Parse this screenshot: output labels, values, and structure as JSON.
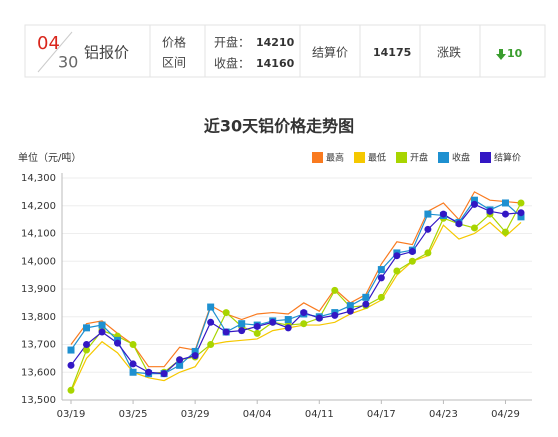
{
  "header": {
    "month": "04",
    "day": "30",
    "name": "铝报价",
    "price_label": "价格",
    "range_label": "区间",
    "open_label": "开盘：",
    "open": "14210",
    "close_label": "收盘：",
    "close": "14160",
    "settle_label": "结算价",
    "settle": "14175",
    "change_label": "涨跌",
    "change": "10"
  },
  "chart_data": {
    "type": "line",
    "title": "近30天铝价格走势图",
    "y_label": "单位（元/吨）",
    "categories": [
      "03/19",
      null,
      null,
      null,
      "03/25",
      null,
      null,
      null,
      "03/29",
      null,
      null,
      null,
      "04/04",
      null,
      null,
      null,
      "04/11",
      null,
      null,
      null,
      "04/17",
      null,
      null,
      null,
      "04/23",
      null,
      null,
      null,
      "04/29",
      null
    ],
    "ylim": [
      13500,
      14300
    ],
    "yticks": [
      {
        "value": 13500,
        "label": "13,500"
      },
      {
        "value": 13600,
        "label": "13,600"
      },
      {
        "value": 13700,
        "label": "13,700"
      },
      {
        "value": 13800,
        "label": "13,800"
      },
      {
        "value": 13900,
        "label": "13,900"
      },
      {
        "value": 14000,
        "label": "14,000"
      },
      {
        "value": 14100,
        "label": "14,100"
      },
      {
        "value": 14200,
        "label": "14,200"
      },
      {
        "value": 14300,
        "label": "14,300"
      }
    ],
    "grid": true,
    "legend": "top-right",
    "series": [
      {
        "name": "最高",
        "color": "#f97a1f",
        "marker": "none",
        "values": [
          13700,
          13775,
          13785,
          13740,
          13700,
          13620,
          13620,
          13690,
          13680,
          13840,
          13810,
          13790,
          13810,
          13815,
          13810,
          13850,
          13820,
          13900,
          13850,
          13880,
          13990,
          14070,
          14060,
          14180,
          14210,
          14150,
          14250,
          14220,
          14215,
          14210
        ]
      },
      {
        "name": "最低",
        "color": "#f5c800",
        "marker": "none",
        "values": [
          13530,
          13650,
          13710,
          13670,
          13600,
          13580,
          13570,
          13600,
          13620,
          13700,
          13710,
          13715,
          13720,
          13750,
          13760,
          13770,
          13770,
          13780,
          13810,
          13830,
          13860,
          13950,
          14000,
          14020,
          14130,
          14080,
          14100,
          14140,
          14090,
          14140
        ]
      },
      {
        "name": "开盘",
        "color": "#a8d500",
        "marker": "circle",
        "values": [
          13535,
          13680,
          13750,
          13730,
          13700,
          13595,
          13600,
          13645,
          13655,
          13700,
          13815,
          13765,
          13740,
          13780,
          13770,
          13775,
          13795,
          13895,
          13835,
          13840,
          13870,
          13965,
          14000,
          14030,
          14155,
          14135,
          14120,
          14170,
          14105,
          14210
        ]
      },
      {
        "name": "收盘",
        "color": "#1e90d0",
        "marker": "square",
        "values": [
          13680,
          13760,
          13770,
          13715,
          13600,
          13595,
          13595,
          13625,
          13675,
          13835,
          13745,
          13775,
          13770,
          13785,
          13790,
          13810,
          13800,
          13815,
          13840,
          13870,
          13970,
          14030,
          14040,
          14170,
          14165,
          14140,
          14220,
          14185,
          14210,
          14160
        ]
      },
      {
        "name": "结算价",
        "color": "#3317c4",
        "marker": "circle",
        "values": [
          13625,
          13700,
          13745,
          13705,
          13630,
          13600,
          13595,
          13645,
          13660,
          13780,
          13745,
          13750,
          13765,
          13780,
          13760,
          13815,
          13795,
          13805,
          13820,
          13845,
          13940,
          14020,
          14035,
          14115,
          14170,
          14135,
          14205,
          14180,
          14170,
          14175
        ]
      }
    ]
  }
}
